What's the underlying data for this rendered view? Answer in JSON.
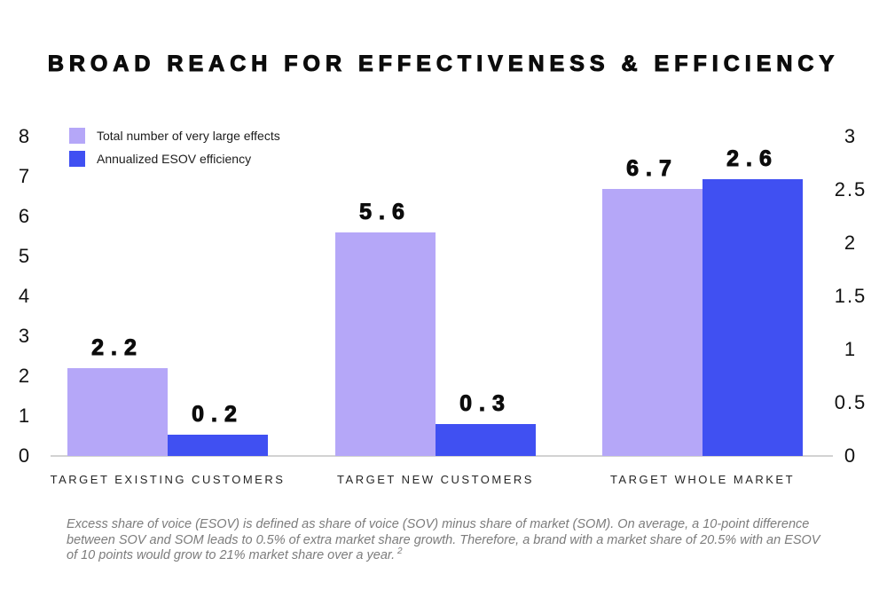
{
  "chart_data": {
    "type": "bar",
    "title": "BROAD REACH FOR EFFECTIVENESS & EFFICIENCY",
    "categories": [
      "TARGET EXISTING CUSTOMERS",
      "TARGET NEW CUSTOMERS",
      "TARGET WHOLE MARKET"
    ],
    "series": [
      {
        "name": "Total number of very large effects",
        "color": "#b5a7f8",
        "axis": "left",
        "values": [
          2.2,
          5.6,
          6.7
        ]
      },
      {
        "name": "Annualized ESOV efficiency",
        "color": "#4050f2",
        "axis": "right",
        "values": [
          0.2,
          0.3,
          2.6
        ]
      }
    ],
    "left_axis": {
      "min": 0,
      "max": 8,
      "tick_labels": [
        "8",
        "7",
        "6",
        "5",
        "4",
        "3",
        "2",
        "1",
        "0"
      ]
    },
    "right_axis": {
      "min": 0,
      "max": 3,
      "tick_labels": [
        "3",
        "2.5",
        "2",
        "1.5",
        "1",
        "0.5",
        "0"
      ]
    },
    "legend_position": "top-left",
    "grid": false,
    "value_labels_shown": true
  },
  "footnote": {
    "lines": [
      "Excess share of voice (ESOV) is defined as share of voice (SOV) minus share of market (SOM). On average, a 10-point difference",
      "between SOV and SOM leads to 0.5% of extra market share growth. Therefore, a brand with a market share of 20.5% with an ESOV",
      "of 10 points would grow to 21% market share over a year."
    ],
    "superscript": "2"
  }
}
